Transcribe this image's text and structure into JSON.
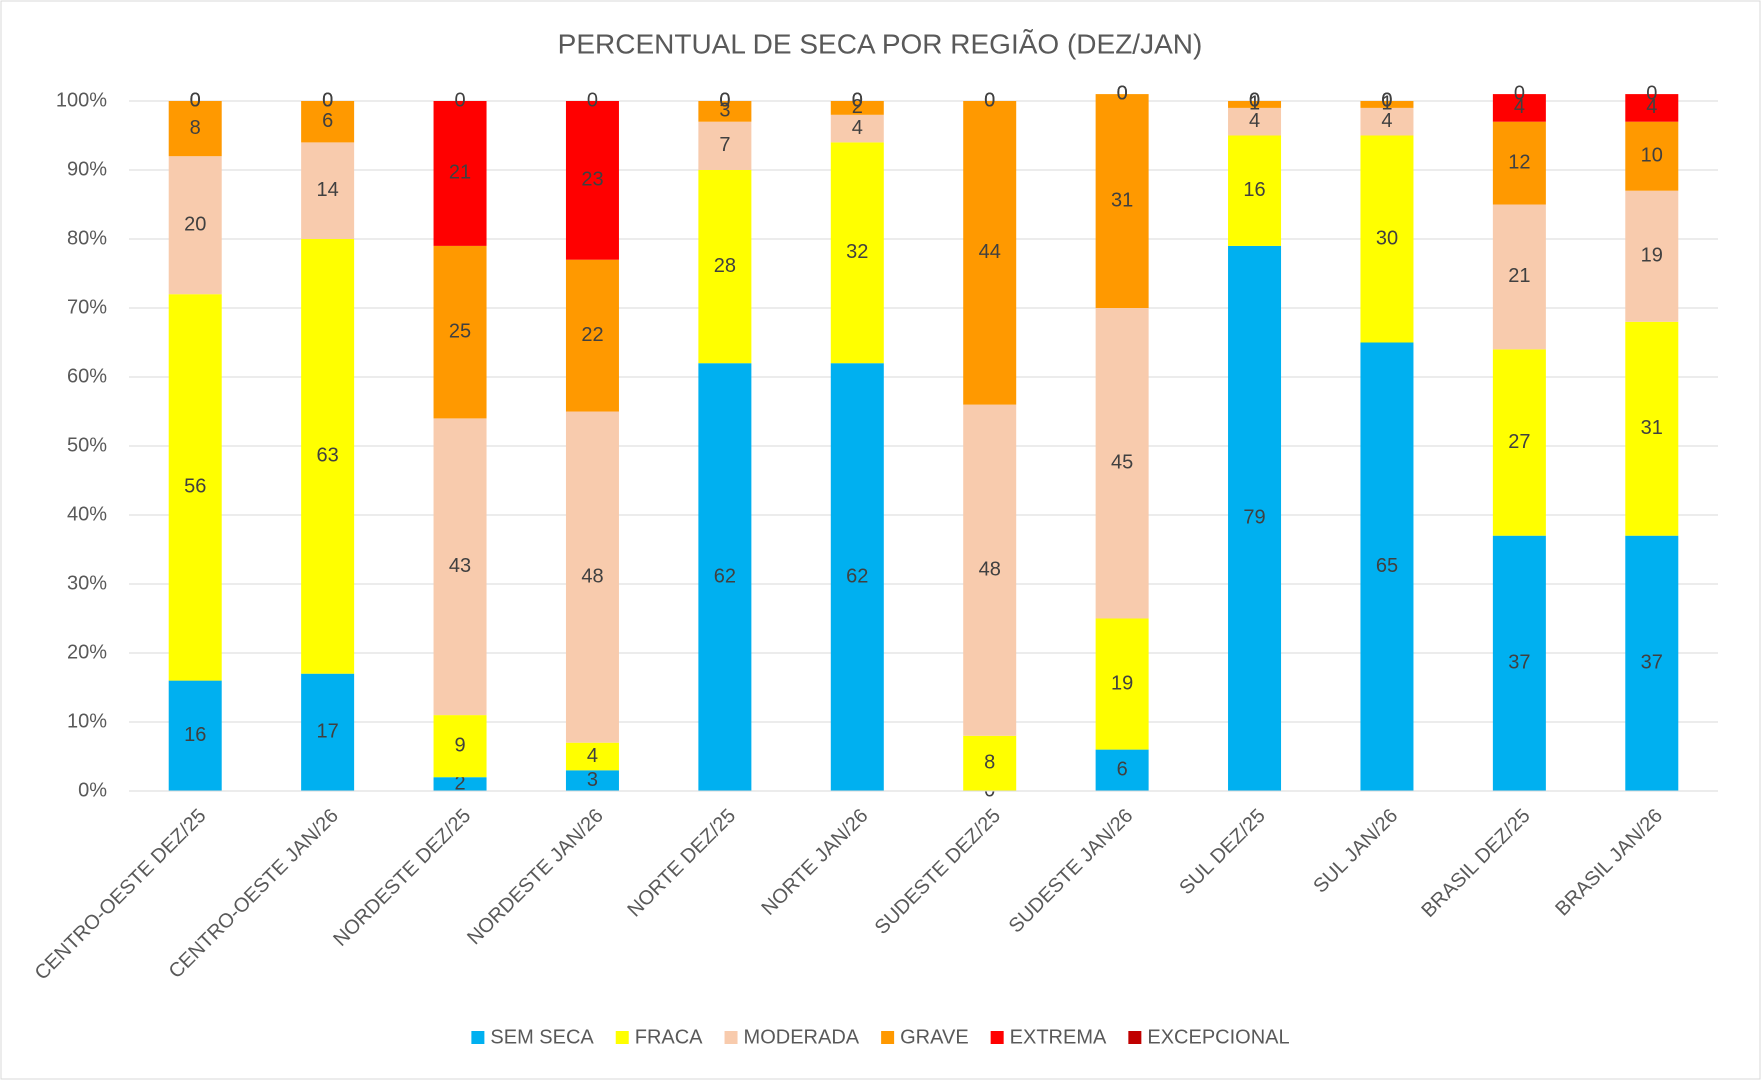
{
  "chart_data": {
    "type": "stacked_bar_percent",
    "title": "PERCENTUAL DE SECA POR REGIÃO (DEZ/JAN)",
    "categories": [
      "CENTRO-OESTE DEZ/25",
      "CENTRO-OESTE JAN/26",
      "NORDESTE DEZ/25",
      "NORDESTE JAN/26",
      "NORTE DEZ/25",
      "NORTE JAN/26",
      "SUDESTE DEZ/25",
      "SUDESTE JAN/26",
      "SUL DEZ/25",
      "SUL JAN/26",
      "BRASIL DEZ/25",
      "BRASIL JAN/26"
    ],
    "series": [
      {
        "name": "SEM SECA",
        "color": "#00b0f0",
        "values": [
          16,
          17,
          2,
          3,
          62,
          62,
          0,
          6,
          79,
          65,
          37,
          37
        ]
      },
      {
        "name": "FRACA",
        "color": "#ffff00",
        "values": [
          56,
          63,
          9,
          4,
          28,
          32,
          8,
          19,
          16,
          30,
          27,
          31
        ]
      },
      {
        "name": "MODERADA",
        "color": "#f8cbad",
        "values": [
          20,
          14,
          43,
          48,
          7,
          4,
          48,
          45,
          4,
          4,
          21,
          19
        ]
      },
      {
        "name": "GRAVE",
        "color": "#ff9900",
        "values": [
          8,
          6,
          25,
          22,
          3,
          2,
          44,
          31,
          1,
          1,
          12,
          10
        ]
      },
      {
        "name": "EXTREMA",
        "color": "#ff0000",
        "values": [
          0,
          0,
          21,
          23,
          0,
          0,
          0,
          0,
          0,
          0,
          4,
          4
        ]
      },
      {
        "name": "EXCEPCIONAL",
        "color": "#c00000",
        "values": [
          0,
          0,
          0,
          0,
          0,
          0,
          0,
          0,
          0,
          0,
          0,
          0
        ]
      }
    ],
    "ylim": [
      0,
      100
    ],
    "yticks": [
      {
        "value": 0,
        "label": "0%"
      },
      {
        "value": 10,
        "label": "10%"
      },
      {
        "value": 20,
        "label": "20%"
      },
      {
        "value": 30,
        "label": "30%"
      },
      {
        "value": 40,
        "label": "40%"
      },
      {
        "value": 50,
        "label": "50%"
      },
      {
        "value": 60,
        "label": "60%"
      },
      {
        "value": 70,
        "label": "70%"
      },
      {
        "value": 80,
        "label": "80%"
      },
      {
        "value": 90,
        "label": "90%"
      },
      {
        "value": 100,
        "label": "100%"
      }
    ],
    "grid": true,
    "legend": "bottom"
  }
}
